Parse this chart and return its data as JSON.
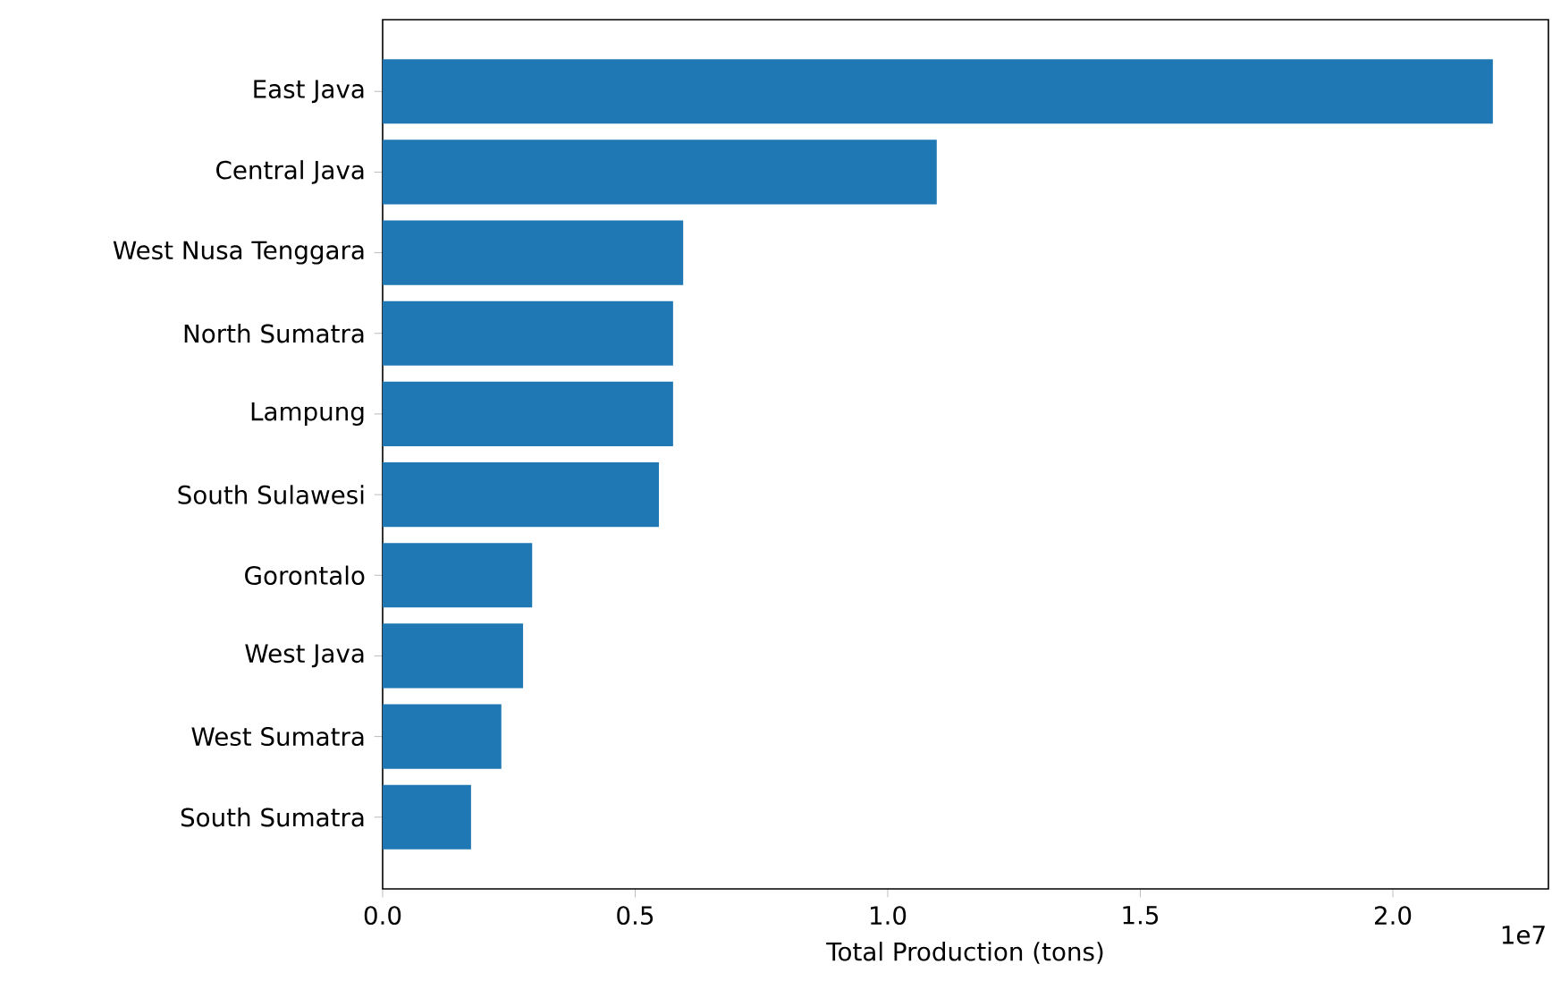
{
  "chart_data": {
    "type": "bar",
    "orientation": "horizontal",
    "xlabel": "Total Production (tons)",
    "categories": [
      "East Java",
      "Central Java",
      "West Nusa Tenggara",
      "North Sumatra",
      "Lampung",
      "South Sulawesi",
      "Gorontalo",
      "West Java",
      "West Sumatra",
      "South Sumatra"
    ],
    "values": [
      2.198,
      1.097,
      0.595,
      0.575,
      0.575,
      0.547,
      0.296,
      0.278,
      0.235,
      0.175
    ],
    "color": "#1f77b4",
    "xlim": [
      0,
      2.308
    ],
    "xticks": [
      {
        "value": 0,
        "label": "0.0"
      },
      0.5,
      {
        "value": 1,
        "label": "1.0"
      },
      1.5,
      {
        "value": 2,
        "label": "2.0"
      }
    ],
    "annotations": [
      "1e7"
    ]
  }
}
